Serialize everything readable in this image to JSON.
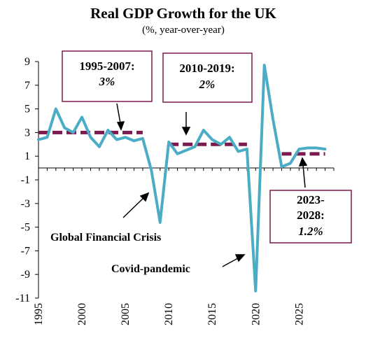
{
  "chart_data": {
    "type": "line",
    "title": "Real GDP Growth for the UK",
    "subtitle": "(%, year-over-year)",
    "xlabel": "",
    "ylabel": "",
    "xlim": [
      1995,
      2029
    ],
    "ylim": [
      -11,
      9
    ],
    "grid": false,
    "x_ticks": [
      "1995",
      "2000",
      "2005",
      "2010",
      "2015",
      "2020",
      "2025"
    ],
    "y_ticks": [
      "9",
      "7",
      "5",
      "3",
      "1",
      "-1",
      "-3",
      "-5",
      "-7",
      "-9",
      "-11"
    ],
    "series": [
      {
        "color": "#4bacc6",
        "x": [
          1995,
          1996,
          1997,
          1998,
          1999,
          2000,
          2001,
          2002,
          2003,
          2004,
          2005,
          2006,
          2007,
          2008,
          2009,
          2010,
          2011,
          2012,
          2013,
          2014,
          2015,
          2016,
          2017,
          2018,
          2019,
          2020,
          2021,
          2022,
          2023,
          2024,
          2025,
          2026,
          2027,
          2028
        ],
        "values": [
          2.4,
          2.6,
          5.0,
          3.4,
          3.0,
          4.3,
          2.6,
          1.8,
          3.2,
          2.4,
          2.6,
          2.3,
          2.5,
          -0.2,
          -4.6,
          2.2,
          1.2,
          1.5,
          1.8,
          3.2,
          2.4,
          2.0,
          2.6,
          1.4,
          1.6,
          -10.4,
          8.7,
          4.1,
          0.1,
          0.4,
          1.6,
          1.7,
          1.7,
          1.6
        ]
      }
    ],
    "averages": [
      {
        "x_start": 1995,
        "x_end": 2007,
        "value": 3.0,
        "color": "#7b1a4e"
      },
      {
        "x_start": 2010,
        "x_end": 2019,
        "value": 2.0,
        "color": "#7b1a4e"
      },
      {
        "x_start": 2023,
        "x_end": 2028,
        "value": 1.2,
        "color": "#7b1a4e"
      }
    ],
    "callouts": [
      {
        "line1": "1995-2007:",
        "line2": "3%"
      },
      {
        "line1": "2010-2019:",
        "line2": "2%"
      },
      {
        "line1": "2023-",
        "line2": "2028:",
        "line3": "1.2%"
      }
    ],
    "annotations": [
      {
        "text": "Global Financial Crisis"
      },
      {
        "text": "Covid-pandemic"
      }
    ],
    "colors": {
      "line": "#4bacc6",
      "average": "#7b1a4e",
      "box_border": "#7b1a4e"
    }
  }
}
